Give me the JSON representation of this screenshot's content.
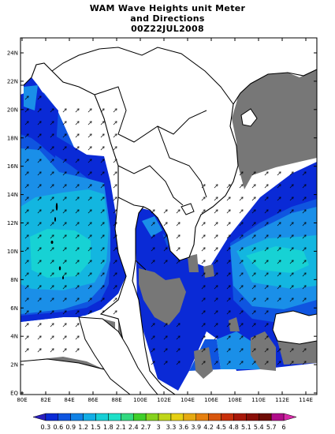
{
  "title": {
    "line1": "WAM Wave Heights unit Meter",
    "line2": "and Directions",
    "line3": "00Z22JUL2008"
  },
  "axes": {
    "lat_labels": [
      "EQ",
      "2N",
      "4N",
      "6N",
      "8N",
      "10N",
      "12N",
      "14N",
      "16N",
      "18N",
      "20N",
      "22N",
      "24N"
    ],
    "lon_labels": [
      "80E",
      "82E",
      "84E",
      "86E",
      "88E",
      "100E",
      "102E",
      "104E",
      "106E",
      "108E",
      "110E",
      "112E",
      "114E"
    ]
  },
  "colorbar": {
    "labels": [
      "0.3",
      "0.6",
      "0.9",
      "1.2",
      "1.5",
      "1.8",
      "2.1",
      "2.4",
      "2.7",
      "3",
      "3.3",
      "3.6",
      "3.9",
      "4.2",
      "4.5",
      "4.8",
      "5.1",
      "5.4",
      "5.7",
      "6"
    ],
    "colors": [
      "#2b1fbf",
      "#0a2ad6",
      "#0f55e0",
      "#1182e6",
      "#13aee6",
      "#17cfd6",
      "#1ee0c8",
      "#33d980",
      "#3fcf2a",
      "#86d21e",
      "#bfd61a",
      "#e6d014",
      "#e6aa12",
      "#e68010",
      "#d8560e",
      "#c8300c",
      "#a8180a",
      "#8a0f08",
      "#6e0c06",
      "#b00d8a",
      "#d62aa8"
    ]
  },
  "legend_colors": {
    "land": "#ffffff",
    "no_data": "#777777",
    "band_0_3_to_0_6": "#0a2ad6",
    "band_0_6_to_0_9": "#0f55e0",
    "band_0_9_to_1_2": "#1a8fe8",
    "band_1_2_to_1_5": "#13b6e0",
    "band_1_5_to_1_8": "#17d2d4"
  }
}
